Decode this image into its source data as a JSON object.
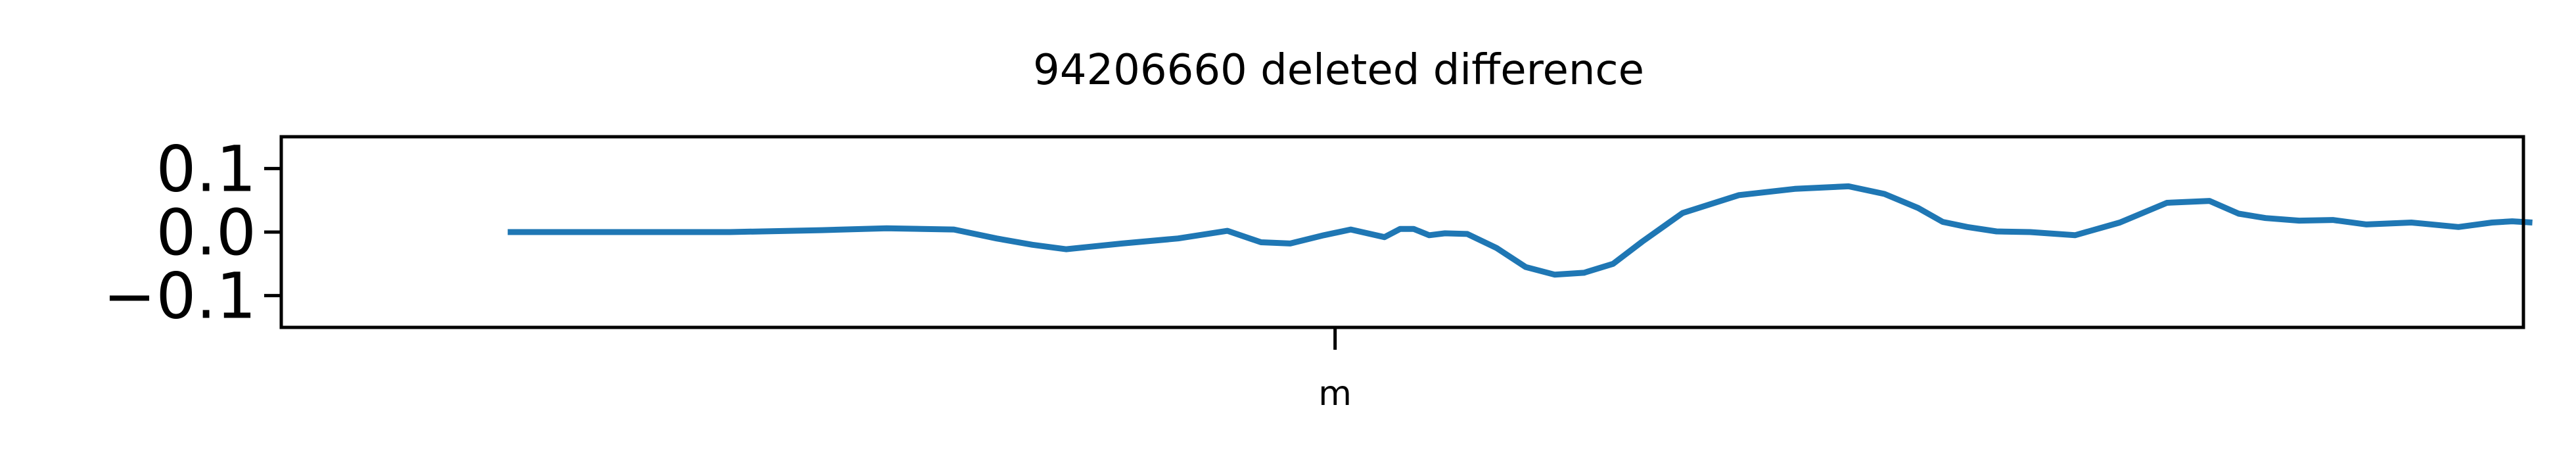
{
  "chart_data": {
    "type": "line",
    "title": "94206660 deleted difference",
    "xlabel": "",
    "ylabel": "",
    "ylim": [
      -0.15,
      0.15
    ],
    "xlim": [
      0,
      100
    ],
    "yticks": [
      0.1,
      0.0,
      -0.1
    ],
    "ytick_labels": [
      "0.1",
      "0.0",
      "−0.1"
    ],
    "xticks": [
      47
    ],
    "xtick_labels": [
      "m"
    ],
    "grid": false,
    "line_color": "#1f77b4",
    "series": [
      {
        "x": [
          10.1,
          15,
          20,
          24.1,
          27,
          30,
          31.9,
          33.5,
          35,
          37.5,
          40,
          42.2,
          43.7,
          45,
          46.5,
          47.7,
          49.2,
          49.9,
          50.5,
          51.2,
          51.9,
          52.9,
          54.2,
          55.5,
          56.8,
          58.1,
          59.4,
          60.7,
          62.5,
          65,
          67.5,
          69.9,
          71.5,
          73,
          74.1,
          75.2,
          76.5,
          78,
          80,
          82,
          84.1,
          86,
          87.3,
          88.5,
          90,
          91.5,
          93,
          95,
          97.1,
          98.6,
          99.5,
          100.4
        ],
        "y": [
          0.0,
          0.0,
          0.0,
          0.003,
          0.006,
          0.004,
          -0.01,
          -0.02,
          -0.027,
          -0.018,
          -0.01,
          0.002,
          -0.016,
          -0.018,
          -0.005,
          0.004,
          -0.008,
          0.005,
          0.005,
          -0.005,
          -0.002,
          -0.003,
          -0.025,
          -0.055,
          -0.067,
          -0.064,
          -0.05,
          -0.015,
          0.03,
          0.058,
          0.068,
          0.072,
          0.06,
          0.038,
          0.016,
          0.008,
          0.001,
          0.0,
          -0.005,
          0.015,
          0.046,
          0.049,
          0.029,
          0.022,
          0.018,
          0.019,
          0.012,
          0.015,
          0.008,
          0.015,
          0.017,
          0.015
        ]
      }
    ]
  }
}
